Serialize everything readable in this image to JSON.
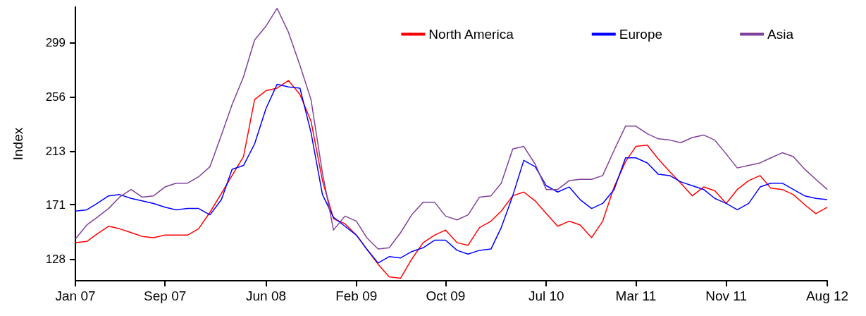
{
  "chart_data": {
    "type": "line",
    "ylabel": "Index",
    "x": [
      "2007-01",
      "2007-02",
      "2007-03",
      "2007-04",
      "2007-05",
      "2007-06",
      "2007-07",
      "2007-08",
      "2007-09",
      "2007-10",
      "2007-11",
      "2007-12",
      "2008-01",
      "2008-02",
      "2008-03",
      "2008-04",
      "2008-05",
      "2008-06",
      "2008-07",
      "2008-08",
      "2008-09",
      "2008-10",
      "2008-11",
      "2008-12",
      "2009-01",
      "2009-02",
      "2009-03",
      "2009-04",
      "2009-05",
      "2009-06",
      "2009-07",
      "2009-08",
      "2009-09",
      "2009-10",
      "2009-11",
      "2009-12",
      "2010-01",
      "2010-02",
      "2010-03",
      "2010-04",
      "2010-05",
      "2010-06",
      "2010-07",
      "2010-08",
      "2010-09",
      "2010-10",
      "2010-11",
      "2010-12",
      "2011-01",
      "2011-02",
      "2011-03",
      "2011-04",
      "2011-05",
      "2011-06",
      "2011-07",
      "2011-08",
      "2011-09",
      "2011-10",
      "2011-11",
      "2011-12",
      "2012-01",
      "2012-02",
      "2012-03",
      "2012-04",
      "2012-05",
      "2012-06",
      "2012-07",
      "2012-08"
    ],
    "series": [
      {
        "name": "North America",
        "color": "#ff0000",
        "values": [
          141,
          142,
          148,
          154,
          152,
          149,
          146,
          145,
          147,
          147,
          147,
          152,
          165,
          180,
          194,
          209,
          254,
          261,
          263,
          269,
          258,
          237,
          190,
          160,
          156,
          147,
          136,
          124,
          114,
          113,
          128,
          141,
          147,
          151,
          141,
          139,
          153,
          158,
          166,
          178,
          181,
          174,
          164,
          154,
          158,
          155,
          145,
          158,
          185,
          205,
          217,
          218,
          207,
          197,
          188,
          178,
          185,
          182,
          172,
          183,
          190,
          194,
          184,
          183,
          179,
          171,
          164,
          169
        ]
      },
      {
        "name": "Europe",
        "color": "#0000ff",
        "values": [
          166,
          167,
          172,
          178,
          179,
          176,
          174,
          172,
          169,
          167,
          168,
          168,
          163,
          175,
          199,
          202,
          219,
          247,
          266,
          264,
          263,
          228,
          179,
          161,
          154,
          147,
          136,
          125,
          130,
          129,
          134,
          137,
          143,
          143,
          135,
          132,
          135,
          136,
          153,
          178,
          206,
          201,
          186,
          181,
          185,
          175,
          168,
          172,
          183,
          208,
          208,
          204,
          195,
          194,
          189,
          186,
          183,
          176,
          172,
          167,
          172,
          185,
          188,
          188,
          183,
          178,
          176,
          175
        ]
      },
      {
        "name": "Asia",
        "color": "#80409a",
        "values": [
          144,
          155,
          161,
          168,
          177,
          183,
          177,
          178,
          185,
          188,
          188,
          193,
          201,
          226,
          250,
          272,
          301,
          312,
          326,
          307,
          281,
          254,
          196,
          151,
          162,
          158,
          145,
          136,
          137,
          149,
          163,
          173,
          173,
          162,
          159,
          163,
          177,
          178,
          188,
          215,
          217,
          203,
          183,
          183,
          190,
          191,
          191,
          194,
          214,
          233,
          233,
          227,
          223,
          222,
          220,
          224,
          226,
          222,
          211,
          200,
          202,
          204,
          208,
          212,
          209,
          199,
          191,
          183
        ]
      }
    ],
    "xlim": [
      "2007-01",
      "2012-08"
    ],
    "xticks": [
      {
        "value": "2007-01",
        "label": "Jan 07"
      },
      {
        "value": "2007-09",
        "label": "Sep 07"
      },
      {
        "value": "2008-06",
        "label": "Jun 08"
      },
      {
        "value": "2009-02",
        "label": "Feb 09"
      },
      {
        "value": "2009-10",
        "label": "Oct 09"
      },
      {
        "value": "2010-07",
        "label": "Jul 10"
      },
      {
        "value": "2011-03",
        "label": "Mar 11"
      },
      {
        "value": "2011-11",
        "label": "Nov 11"
      },
      {
        "value": "2012-08",
        "label": "Aug 12"
      }
    ],
    "ylim": [
      111,
      327
    ],
    "yticks": [
      128,
      171,
      213,
      256,
      299
    ],
    "grid": false,
    "legend": "top right"
  }
}
